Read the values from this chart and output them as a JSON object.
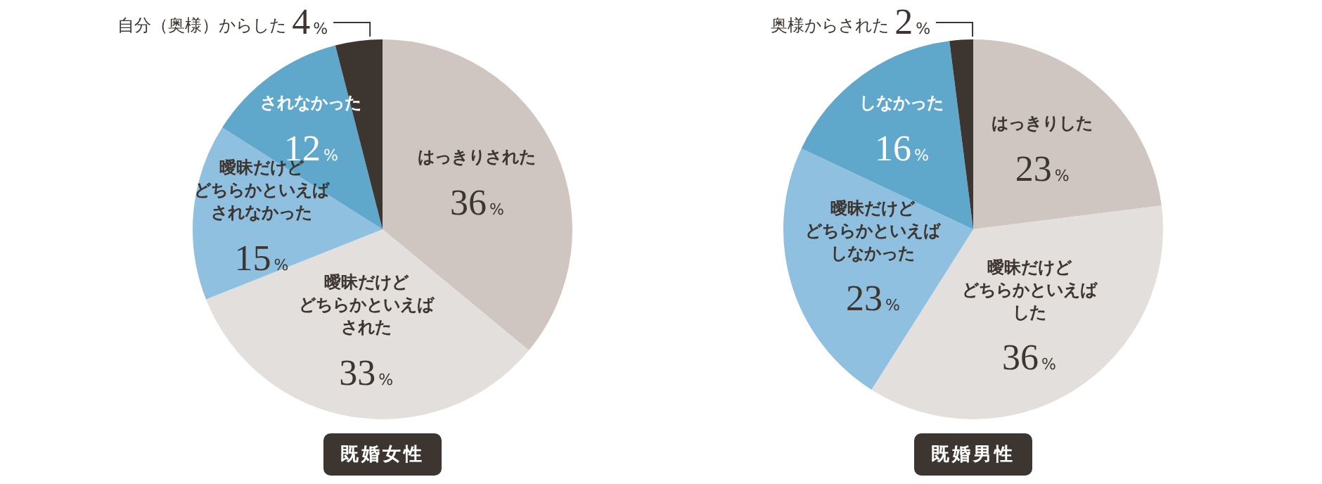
{
  "chart_data": [
    {
      "type": "pie",
      "title": "既婚女性",
      "categories": [
        "はっきりされた",
        "曖昧だけどどちらかといえばされた",
        "曖昧だけどどちらかといえばされなかった",
        "されなかった",
        "自分（奥様）からした"
      ],
      "values": [
        36,
        33,
        15,
        12,
        4
      ],
      "colors": [
        "#cfc6c1",
        "#e3dfdc",
        "#8fc0e0",
        "#5fa8cc",
        "#3d3530"
      ],
      "value_labels": [
        "36%",
        "33%",
        "15%",
        "12%",
        "4%"
      ]
    },
    {
      "type": "pie",
      "title": "既婚男性",
      "categories": [
        "はっきりした",
        "曖昧だけどどちらかといえばした",
        "曖昧だけどどちらかといえばしなかった",
        "しなかった",
        "奥様からされた"
      ],
      "values": [
        23,
        36,
        23,
        16,
        2
      ],
      "colors": [
        "#cfc6c1",
        "#e3dfdc",
        "#8fc0e0",
        "#5fa8cc",
        "#3d3530"
      ],
      "value_labels": [
        "23%",
        "36%",
        "23%",
        "16%",
        "2%"
      ]
    }
  ]
}
